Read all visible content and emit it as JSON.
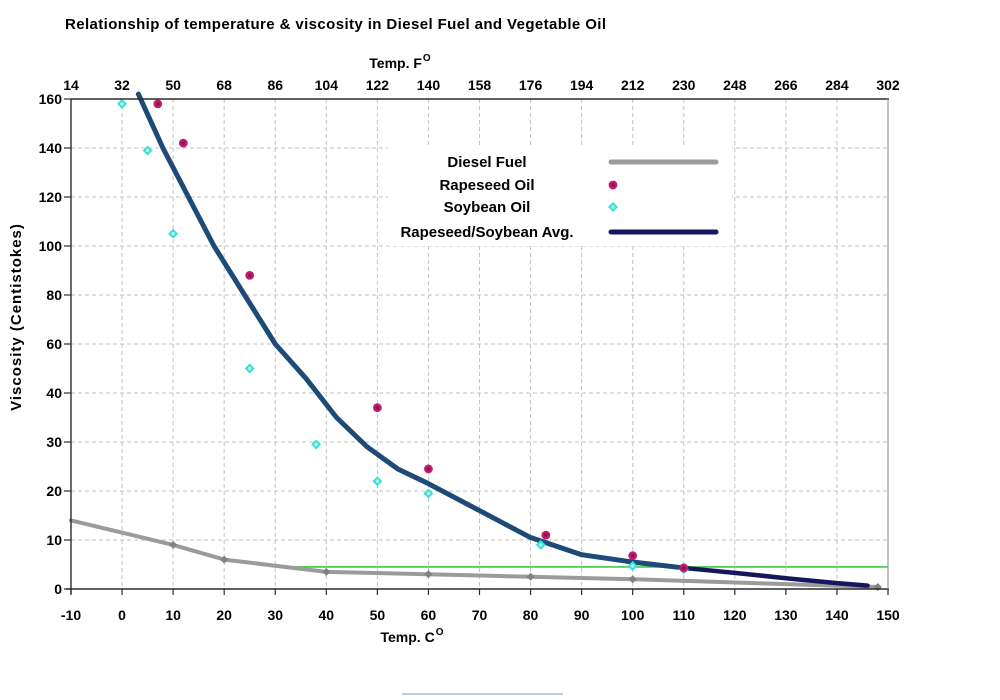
{
  "title": "Relationship of temperature & viscosity in Diesel Fuel and Vegetable Oil",
  "axes": {
    "top": {
      "label": "Temp. F",
      "sup": "O",
      "ticks": [
        14,
        32,
        50,
        68,
        86,
        104,
        122,
        140,
        158,
        176,
        194,
        212,
        230,
        248,
        266,
        284,
        302
      ]
    },
    "bottom": {
      "label": "Temp. C",
      "sup": "O",
      "ticks": [
        -10,
        0,
        10,
        20,
        30,
        40,
        50,
        60,
        70,
        80,
        90,
        100,
        110,
        120,
        130,
        140,
        150
      ]
    },
    "left": {
      "label": "Viscosity (Centistokes)",
      "ticks": [
        0,
        10,
        20,
        30,
        40,
        60,
        80,
        100,
        120,
        140,
        160
      ],
      "note": "tick labels are equally spaced: 10-unit steps up to 40, then 20-unit steps to 160"
    }
  },
  "legend": {
    "items": [
      {
        "label": "Diesel Fuel",
        "swatch": "line",
        "color_key": "diesel"
      },
      {
        "label": "Rapeseed Oil",
        "swatch": "marker-circle",
        "color_key": "rapeseed"
      },
      {
        "label": "Soybean Oil",
        "swatch": "marker-diamond",
        "color_key": "soybean"
      },
      {
        "label": "Rapeseed/Soybean Avg.",
        "swatch": "line",
        "color_key": "avg_tail"
      }
    ]
  },
  "colors": {
    "background": "#ffffff",
    "grid": "#c2c2c2",
    "axis": "#2b2b2b",
    "right_border": "#9a9a9a",
    "diesel": "#9b9b9b",
    "diesel_marker": "#818181",
    "rapeseed": "#c11b6b",
    "rapeseed_core": "#8a1050",
    "soybean": "#3cdfd6",
    "soybean_core": "#b9f4ef",
    "avg_main": "#1c4b78",
    "avg_tail": "#16165e",
    "reference": "#3ecb3e",
    "artifact": "#a9bcd9"
  },
  "chart_data": {
    "type": "line+scatter",
    "title": "Relationship of temperature & viscosity in Diesel Fuel and Vegetable Oil",
    "xlabel": "Temp. C (bottom) / Temp. F (top)",
    "ylabel": "Viscosity (Centistokes)",
    "x_range_c": [
      -10,
      150
    ],
    "y_ticks": [
      0,
      10,
      20,
      30,
      40,
      60,
      80,
      100,
      120,
      140,
      160
    ],
    "grid": "dashed, both directions",
    "legend_position": "inside top-center-right, opaque white box",
    "series": [
      {
        "name": "Diesel Fuel",
        "type": "line",
        "marker": "diamond",
        "color_key": "diesel",
        "points": [
          [
            -10,
            14
          ],
          [
            10,
            9
          ],
          [
            20,
            6
          ],
          [
            40,
            3.5
          ],
          [
            60,
            3
          ],
          [
            80,
            2.5
          ],
          [
            100,
            2
          ],
          [
            148,
            0.4
          ]
        ],
        "marker_points": [
          [
            10,
            9
          ],
          [
            20,
            6
          ],
          [
            40,
            3.5
          ],
          [
            60,
            3
          ],
          [
            80,
            2.5
          ],
          [
            100,
            2
          ],
          [
            148,
            0.4
          ]
        ]
      },
      {
        "name": "Rapeseed Oil",
        "type": "scatter",
        "marker": "circle",
        "color_key": "rapeseed",
        "points": [
          [
            7,
            158
          ],
          [
            12,
            142
          ],
          [
            25,
            88
          ],
          [
            50,
            37
          ],
          [
            60,
            24.5
          ],
          [
            83,
            11
          ],
          [
            100,
            6.8
          ],
          [
            110,
            4.3
          ]
        ]
      },
      {
        "name": "Soybean Oil",
        "type": "scatter",
        "marker": "diamond",
        "color_key": "soybean",
        "points": [
          [
            0,
            158
          ],
          [
            5,
            139
          ],
          [
            10,
            105
          ],
          [
            25,
            50
          ],
          [
            38,
            29.5
          ],
          [
            50,
            22
          ],
          [
            60,
            19.5
          ],
          [
            82,
            9
          ],
          [
            100,
            4.7
          ],
          [
            110,
            4
          ]
        ]
      },
      {
        "name": "Rapeseed/Soybean Avg.",
        "type": "line",
        "marker": "none",
        "color_key": "avg_main",
        "tail_color_key": "avg_tail",
        "tail_from_c": 110,
        "points": [
          [
            3.2,
            162
          ],
          [
            8,
            140
          ],
          [
            13,
            120
          ],
          [
            18,
            100
          ],
          [
            24,
            80
          ],
          [
            30,
            60
          ],
          [
            36,
            46
          ],
          [
            42,
            35
          ],
          [
            48,
            29
          ],
          [
            54,
            24.5
          ],
          [
            60,
            21.5
          ],
          [
            70,
            16
          ],
          [
            80,
            10.5
          ],
          [
            90,
            7
          ],
          [
            100,
            5.5
          ],
          [
            110,
            4.3
          ],
          [
            120,
            3.3
          ],
          [
            130,
            2.2
          ],
          [
            140,
            1.2
          ],
          [
            146,
            0.7
          ]
        ]
      },
      {
        "name": "reference-line",
        "type": "hline",
        "color_key": "reference",
        "value": 4.5,
        "from_c": 30,
        "to_c": 150
      }
    ]
  }
}
